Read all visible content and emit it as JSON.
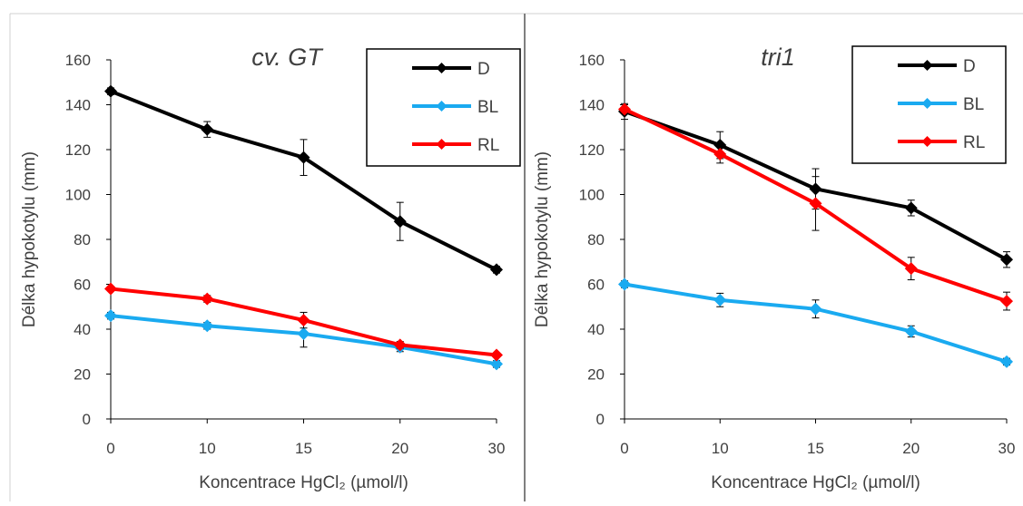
{
  "chart_data": [
    {
      "type": "line",
      "title": "cv. GT",
      "xlabel": "Koncentrace HgCl₂ (µmol/l)",
      "ylabel": "Délka hypokotylu (mm)",
      "categories": [
        "0",
        "10",
        "15",
        "20",
        "30"
      ],
      "ylim": [
        0,
        160
      ],
      "yticks": [
        0,
        20,
        40,
        60,
        80,
        100,
        120,
        140,
        160
      ],
      "grid": false,
      "legend_position": "top-right",
      "series": [
        {
          "name": "D",
          "color": "#000000",
          "values": [
            146,
            129,
            116.5,
            88,
            66.5
          ],
          "errors": [
            1.5,
            3.5,
            8,
            8.5,
            1.5
          ]
        },
        {
          "name": "BL",
          "color": "#1aaaf0",
          "values": [
            46,
            41.5,
            38,
            32,
            24.5
          ],
          "errors": [
            1.5,
            1.5,
            6,
            2,
            1.5
          ]
        },
        {
          "name": "RL",
          "color": "#ff0000",
          "values": [
            58,
            53.5,
            44,
            33,
            28.5
          ],
          "errors": [
            1,
            1.5,
            3.5,
            1.5,
            1
          ]
        }
      ]
    },
    {
      "type": "line",
      "title": "tri1",
      "xlabel": "Koncentrace HgCl₂ (µmol/l)",
      "ylabel": "Délka hypokotylu (mm)",
      "categories": [
        "0",
        "10",
        "15",
        "20",
        "30"
      ],
      "ylim": [
        0,
        160
      ],
      "yticks": [
        0,
        20,
        40,
        60,
        80,
        100,
        120,
        140,
        160
      ],
      "grid": false,
      "legend_position": "top-right",
      "series": [
        {
          "name": "D",
          "color": "#000000",
          "values": [
            137,
            122,
            102.5,
            94,
            71
          ],
          "errors": [
            3.5,
            6,
            9,
            3.5,
            3.5
          ]
        },
        {
          "name": "BL",
          "color": "#1aaaf0",
          "values": [
            60,
            53,
            49,
            39,
            25.5
          ],
          "errors": [
            1.5,
            3,
            4,
            2.5,
            1.5
          ]
        },
        {
          "name": "RL",
          "color": "#ff0000",
          "values": [
            138,
            118,
            96,
            67,
            52.5
          ],
          "errors": [
            2,
            4,
            12,
            5,
            4
          ]
        }
      ]
    }
  ]
}
